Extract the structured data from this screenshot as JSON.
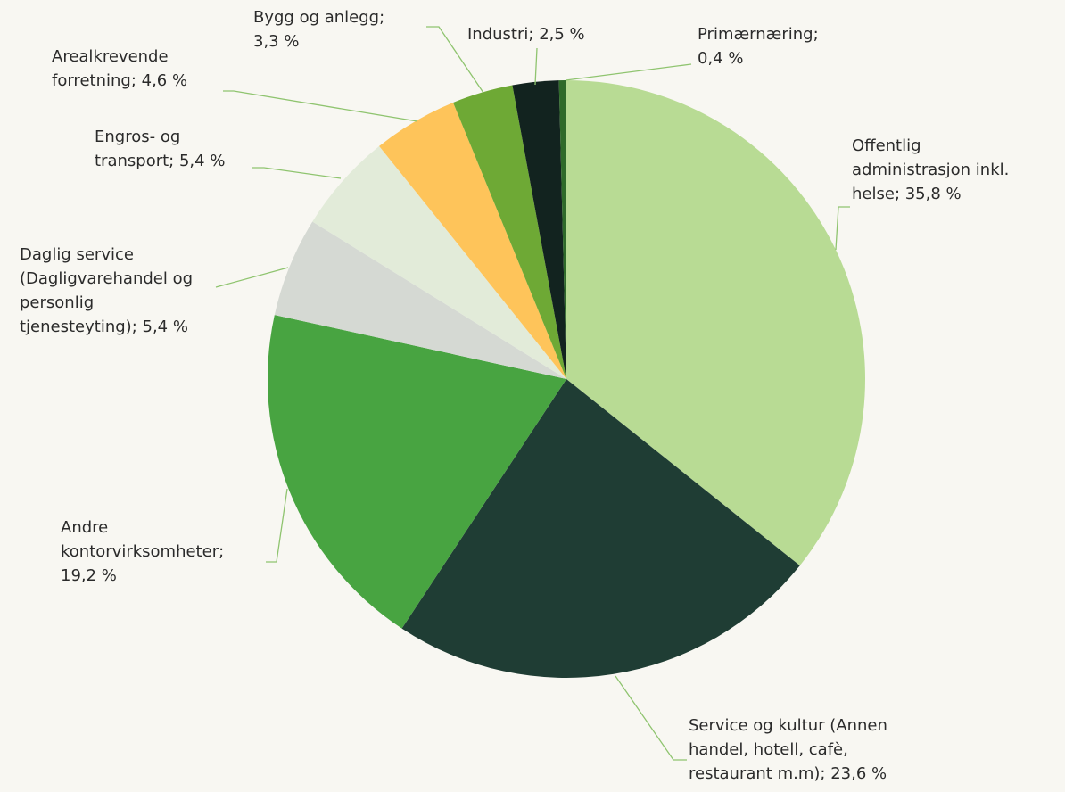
{
  "chart_data": {
    "type": "pie",
    "categories": [
      "Offentlig administrasjon inkl. helse",
      "Service og kultur (Annen handel, hotell, cafè, restaurant m.m)",
      "Andre kontorvirksomheter",
      "Daglig service (Dagligvarehandel og personlig tjenesteyting)",
      "Engros- og transport",
      "Arealkrevende forretning",
      "Bygg og anlegg",
      "Industri",
      "Primærnæring"
    ],
    "values": [
      35.8,
      23.6,
      19.2,
      5.4,
      5.4,
      4.6,
      3.3,
      2.5,
      0.4
    ],
    "value_labels": [
      "35,8 %",
      "23,6 %",
      "19,2 %",
      "5,4 %",
      "5,4 %",
      "4,6 %",
      "3,3 %",
      "2,5 %",
      "0,4 %"
    ],
    "separator": "; ",
    "colors": [
      "#b8db94",
      "#1f3d34",
      "#48a441",
      "#d5d9d3",
      "#e2ebd9",
      "#fec45a",
      "#6ea935",
      "#12231f",
      "#2f6a2a"
    ]
  }
}
